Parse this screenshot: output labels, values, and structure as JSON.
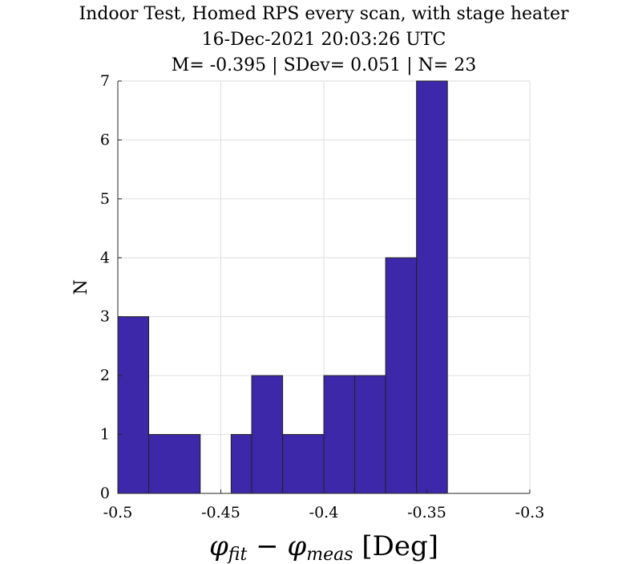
{
  "chart_data": {
    "type": "bar",
    "title": [
      "Indoor Test, Homed RPS every scan, with stage heater",
      "16-Dec-2021 20:03:26 UTC",
      "M= -0.395 | SDev= 0.051 | N= 23"
    ],
    "xlabel": {
      "phi": "φ",
      "sub1": "fit",
      "minus": " − ",
      "sub2": "meas",
      "unit": " [Deg]"
    },
    "ylabel": "N",
    "xlim": [
      -0.5,
      -0.3
    ],
    "ylim": [
      0,
      7
    ],
    "xticks": [
      -0.5,
      -0.45,
      -0.4,
      -0.35,
      -0.3
    ],
    "xtick_labels": [
      "-0.5",
      "-0.45",
      "-0.4",
      "-0.35",
      "-0.3"
    ],
    "yticks": [
      0,
      1,
      2,
      3,
      4,
      5,
      6,
      7
    ],
    "ytick_labels": [
      "0",
      "1",
      "2",
      "3",
      "4",
      "5",
      "6",
      "7"
    ],
    "grid": true,
    "bin_edges": [
      -0.5,
      -0.48,
      -0.46,
      -0.44,
      -0.42,
      -0.4,
      -0.38,
      -0.36,
      -0.34,
      -0.32,
      -0.3
    ],
    "bins": [
      {
        "x0": -0.5,
        "x1": -0.485,
        "count": 3
      },
      {
        "x0": -0.485,
        "x1": -0.46,
        "count": 1
      },
      {
        "x0": -0.46,
        "x1": -0.445,
        "count": 0
      },
      {
        "x0": -0.445,
        "x1": -0.435,
        "count": 1
      },
      {
        "x0": -0.435,
        "x1": -0.42,
        "count": 2
      },
      {
        "x0": -0.42,
        "x1": -0.4,
        "count": 1
      },
      {
        "x0": -0.4,
        "x1": -0.385,
        "count": 2
      },
      {
        "x0": -0.385,
        "x1": -0.37,
        "count": 2
      },
      {
        "x0": -0.37,
        "x1": -0.355,
        "count": 4
      },
      {
        "x0": -0.355,
        "x1": -0.34,
        "count": 7
      }
    ],
    "bar_color": "#3c28a8"
  }
}
